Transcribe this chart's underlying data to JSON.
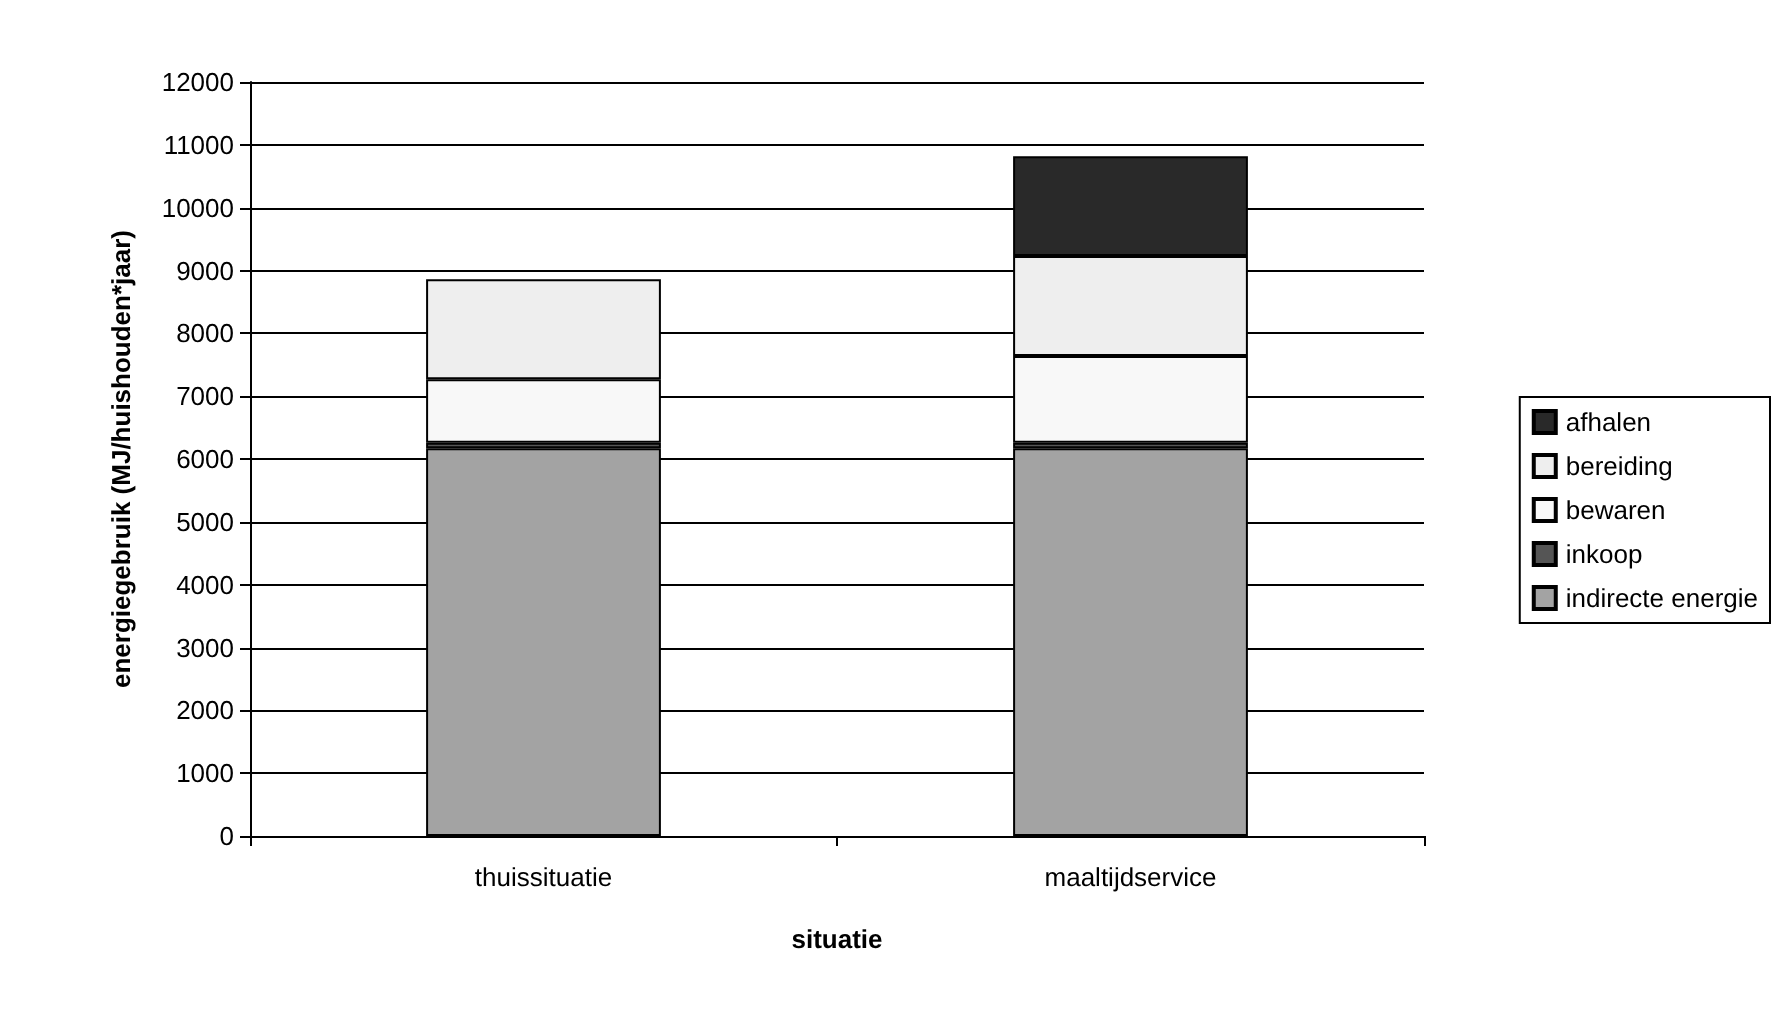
{
  "chart_data": {
    "type": "bar",
    "stacked": true,
    "xlabel": "situatie",
    "ylabel": "energiegebruik (MJ/huishouden*jaar)",
    "categories": [
      "thuissituatie",
      "maaltijdservice"
    ],
    "series": [
      {
        "name": "indirecte energie",
        "color": "#a3a3a3",
        "values": [
          6170,
          6170
        ]
      },
      {
        "name": "inkoop",
        "color": "#555555",
        "values": [
          90,
          90
        ]
      },
      {
        "name": "bewaren",
        "color": "#f8f8f8",
        "values": [
          1010,
          1380
        ]
      },
      {
        "name": "bereiding",
        "color": "#eeeeee",
        "values": [
          1590,
          1590
        ]
      },
      {
        "name": "afhalen",
        "color": "#292929",
        "values": [
          null,
          1590
        ]
      }
    ],
    "ylim": [
      0,
      12000
    ],
    "yticks": [
      0,
      1000,
      2000,
      3000,
      4000,
      5000,
      6000,
      7000,
      8000,
      9000,
      10000,
      11000,
      12000
    ],
    "grid": "y",
    "legend": "right"
  }
}
